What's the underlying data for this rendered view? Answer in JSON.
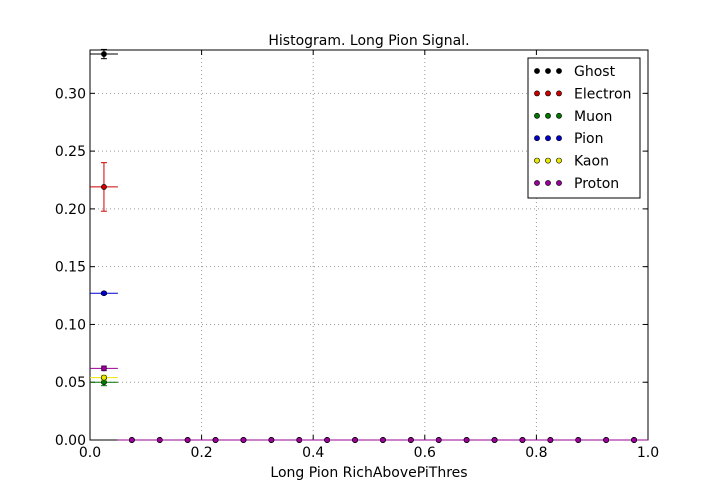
{
  "chart_data": {
    "type": "scatter",
    "title": "Histogram. Long Pion Signal.",
    "xlabel": "Long Pion RichAbovePiThres",
    "ylabel": "",
    "xlim": [
      0.0,
      1.0
    ],
    "ylim": [
      0.0,
      0.3375
    ],
    "xticks": [
      "0.0",
      "0.2",
      "0.4",
      "0.6",
      "0.8",
      "1.0"
    ],
    "yticks": [
      "0.00",
      "0.05",
      "0.10",
      "0.15",
      "0.20",
      "0.25",
      "0.30"
    ],
    "grid": true,
    "legend_position": "top-right",
    "bin_half_width": 0.025,
    "x": [
      0.025,
      0.075,
      0.125,
      0.175,
      0.225,
      0.275,
      0.325,
      0.375,
      0.425,
      0.475,
      0.525,
      0.575,
      0.625,
      0.675,
      0.725,
      0.775,
      0.825,
      0.875,
      0.925,
      0.975
    ],
    "series": [
      {
        "name": "Ghost",
        "color": "#000000",
        "values": [
          0.334,
          0,
          0,
          0,
          0,
          0,
          0,
          0,
          0,
          0,
          0,
          0,
          0,
          0,
          0,
          0,
          0,
          0,
          0,
          0
        ],
        "errors": [
          0.004,
          0,
          0,
          0,
          0,
          0,
          0,
          0,
          0,
          0,
          0,
          0,
          0,
          0,
          0,
          0,
          0,
          0,
          0,
          0
        ]
      },
      {
        "name": "Electron",
        "color": "#cc0000",
        "values": [
          0.219,
          0,
          0,
          0,
          0,
          0,
          0,
          0,
          0,
          0,
          0,
          0,
          0,
          0,
          0,
          0,
          0,
          0,
          0,
          0
        ],
        "errors": [
          0.021,
          0,
          0,
          0,
          0,
          0,
          0,
          0,
          0,
          0,
          0,
          0,
          0,
          0,
          0,
          0,
          0,
          0,
          0,
          0
        ]
      },
      {
        "name": "Muon",
        "color": "#007700",
        "values": [
          0.05,
          0,
          0,
          0,
          0,
          0,
          0,
          0,
          0,
          0,
          0,
          0,
          0,
          0,
          0,
          0,
          0,
          0,
          0,
          0
        ],
        "errors": [
          0.003,
          0,
          0,
          0,
          0,
          0,
          0,
          0,
          0,
          0,
          0,
          0,
          0,
          0,
          0,
          0,
          0,
          0,
          0,
          0
        ]
      },
      {
        "name": "Pion",
        "color": "#0000cc",
        "values": [
          0.127,
          0,
          0,
          0,
          0,
          0,
          0,
          0,
          0,
          0,
          0,
          0,
          0,
          0,
          0,
          0,
          0,
          0,
          0,
          0
        ],
        "errors": [
          0.001,
          0,
          0,
          0,
          0,
          0,
          0,
          0,
          0,
          0,
          0,
          0,
          0,
          0,
          0,
          0,
          0,
          0,
          0,
          0
        ]
      },
      {
        "name": "Kaon",
        "color": "#e8e800",
        "values": [
          0.054,
          0,
          0,
          0,
          0,
          0,
          0,
          0,
          0,
          0,
          0,
          0,
          0,
          0,
          0,
          0,
          0,
          0,
          0,
          0
        ],
        "errors": [
          0.002,
          0,
          0,
          0,
          0,
          0,
          0,
          0,
          0,
          0,
          0,
          0,
          0,
          0,
          0,
          0,
          0,
          0,
          0,
          0
        ]
      },
      {
        "name": "Proton",
        "color": "#990099",
        "values": [
          0.062,
          0,
          0,
          0,
          0,
          0,
          0,
          0,
          0,
          0,
          0,
          0,
          0,
          0,
          0,
          0,
          0,
          0,
          0,
          0
        ],
        "errors": [
          0.002,
          0,
          0,
          0,
          0,
          0,
          0,
          0,
          0,
          0,
          0,
          0,
          0,
          0,
          0,
          0,
          0,
          0,
          0,
          0
        ]
      }
    ]
  }
}
